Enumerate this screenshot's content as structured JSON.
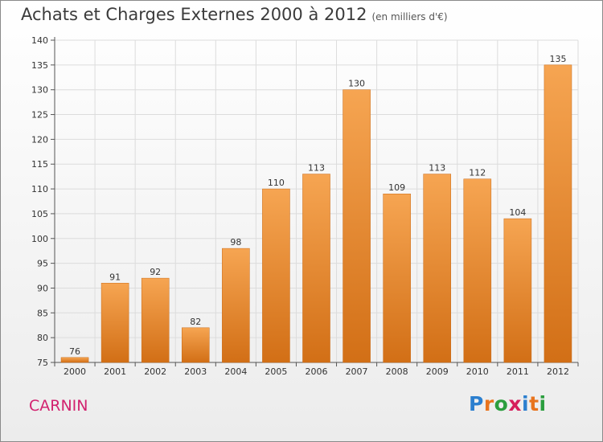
{
  "header": {
    "title": "Achats et Charges Externes 2000 à 2012",
    "subtitle": "(en milliers d'€)"
  },
  "footer": {
    "place": "CARNIN",
    "logo": "Proxiti",
    "logo_colors": [
      "#2b7fcf",
      "#e8741e",
      "#2b9e3e",
      "#d61f5c",
      "#2b7fcf",
      "#e8741e",
      "#2b9e3e"
    ]
  },
  "chart_data": {
    "type": "bar",
    "title": "Achats et Charges Externes 2000 à 2012",
    "subtitle": "(en milliers d'€)",
    "categories": [
      "2000",
      "2001",
      "2002",
      "2003",
      "2004",
      "2005",
      "2006",
      "2007",
      "2008",
      "2009",
      "2010",
      "2011",
      "2012"
    ],
    "values": [
      76,
      91,
      92,
      82,
      98,
      110,
      113,
      130,
      109,
      113,
      112,
      104,
      135
    ],
    "ylim": [
      75,
      140
    ],
    "yticks": [
      75,
      80,
      85,
      90,
      95,
      100,
      105,
      110,
      115,
      120,
      125,
      130,
      135,
      140
    ],
    "grid": true,
    "bar_color_top": "#f6a552",
    "bar_color_bottom": "#d26f16"
  }
}
